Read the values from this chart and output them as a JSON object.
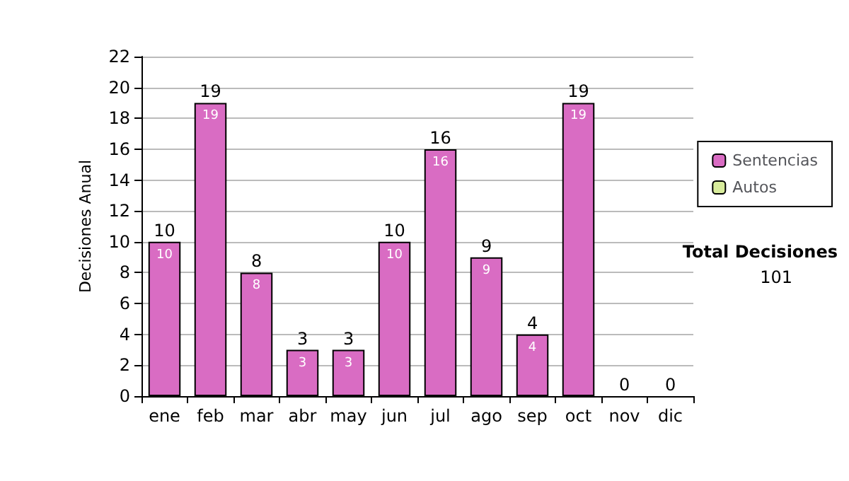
{
  "chart_data": {
    "type": "bar",
    "ylabel": "Decisiones Anual",
    "stacked": true,
    "categories": [
      "ene",
      "feb",
      "mar",
      "abr",
      "may",
      "jun",
      "jul",
      "ago",
      "sep",
      "oct",
      "nov",
      "dic"
    ],
    "series": [
      {
        "name": "Sentencias",
        "color": "#d96cc3",
        "values": [
          10,
          19,
          8,
          3,
          3,
          10,
          16,
          9,
          4,
          19,
          0,
          0
        ],
        "value_labels": [
          "10",
          "19",
          "8",
          "3",
          "3",
          "10",
          "16",
          "9",
          "4",
          "19",
          null,
          null
        ]
      },
      {
        "name": "Autos",
        "color": "#d8ec9c",
        "values": [
          0,
          0,
          0,
          0,
          0,
          0,
          0,
          0,
          0,
          0,
          0,
          0
        ]
      }
    ],
    "totals": [
      "10",
      "19",
      "8",
      "3",
      "3",
      "10",
      "16",
      "9",
      "4",
      "19",
      "0",
      "0"
    ],
    "ylim": [
      0,
      22
    ],
    "yticks": [
      0,
      2,
      4,
      6,
      8,
      10,
      12,
      14,
      16,
      18,
      20,
      22
    ],
    "grid": "y",
    "legend": "right",
    "annotations": [
      "Total Decisiones",
      "101"
    ]
  }
}
